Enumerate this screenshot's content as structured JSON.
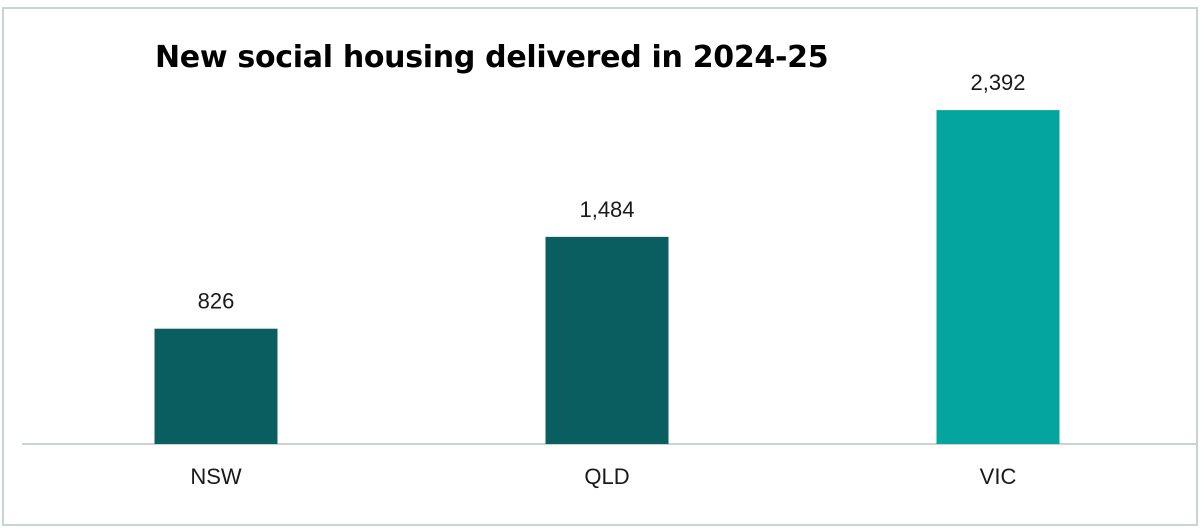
{
  "chart_data": {
    "type": "bar",
    "title": "New social housing delivered in 2024-25",
    "xlabel": "",
    "ylabel": "",
    "categories": [
      "NSW",
      "QLD",
      "VIC"
    ],
    "values": [
      826,
      1484,
      2392
    ],
    "value_labels": [
      "826",
      "1,484",
      "2,392"
    ],
    "bar_colors": [
      "#0a5e60",
      "#0a5e60",
      "#05a59f"
    ],
    "ylim": [
      0,
      2400
    ],
    "grid": false,
    "legend": "none"
  },
  "colors": {
    "frame_border": "#c9d3d0",
    "baseline": "#c9d3d0"
  }
}
